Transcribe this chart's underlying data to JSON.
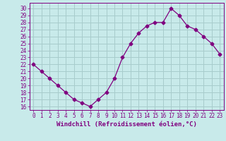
{
  "x": [
    0,
    1,
    2,
    3,
    4,
    5,
    6,
    7,
    8,
    9,
    10,
    11,
    12,
    13,
    14,
    15,
    16,
    17,
    18,
    19,
    20,
    21,
    22,
    23
  ],
  "y": [
    22,
    21,
    20,
    19,
    18,
    17,
    16.5,
    16,
    17,
    18,
    20,
    23,
    25,
    26.5,
    27.5,
    28,
    28,
    30,
    29,
    27.5,
    27,
    26,
    25,
    23.5
  ],
  "line_color": "#800080",
  "marker": "D",
  "marker_size": 2.5,
  "bg_color": "#c8eaea",
  "grid_color": "#a8cccc",
  "xlabel": "Windchill (Refroidissement éolien,°C)",
  "xlim": [
    -0.5,
    23.5
  ],
  "ylim": [
    15.5,
    30.8
  ],
  "xticks": [
    0,
    1,
    2,
    3,
    4,
    5,
    6,
    7,
    8,
    9,
    10,
    11,
    12,
    13,
    14,
    15,
    16,
    17,
    18,
    19,
    20,
    21,
    22,
    23
  ],
  "yticks": [
    16,
    17,
    18,
    19,
    20,
    21,
    22,
    23,
    24,
    25,
    26,
    27,
    28,
    29,
    30
  ],
  "tick_color": "#800080",
  "spine_color": "#800080",
  "xlabel_color": "#800080",
  "xlabel_fontsize": 6.5,
  "tick_fontsize": 5.5
}
